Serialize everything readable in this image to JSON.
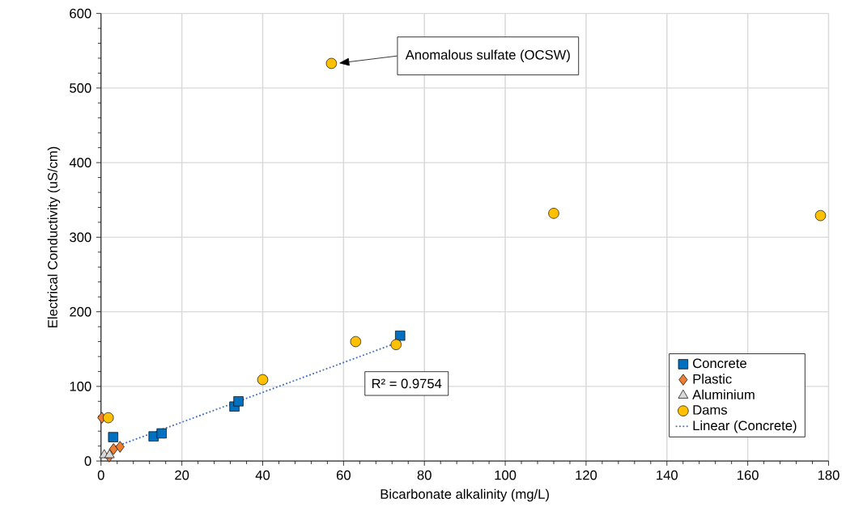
{
  "chart_data": {
    "type": "scatter",
    "xlabel": "Bicarbonate alkalinity (mg/L)",
    "ylabel": "Electrical Conductivity (uS/cm)",
    "xlim": [
      0,
      180
    ],
    "ylim": [
      0,
      600
    ],
    "xticks": [
      0,
      20,
      40,
      60,
      80,
      100,
      120,
      140,
      160,
      180
    ],
    "yticks": [
      0,
      100,
      200,
      300,
      400,
      500,
      600
    ],
    "grid": true,
    "legend": "bottom right",
    "series": [
      {
        "name": "Concrete",
        "color": "#0070c0",
        "marker": "square",
        "x": [
          3,
          13,
          15,
          33,
          34,
          74
        ],
        "values": [
          32,
          33,
          37,
          73,
          80,
          168
        ]
      },
      {
        "name": "Plastic",
        "color": "#ed7d31",
        "marker": "diamond",
        "x": [
          0.2,
          2,
          3.1,
          4.7
        ],
        "values": [
          58,
          6,
          16,
          19
        ]
      },
      {
        "name": "Aluminium",
        "color": "#d9d9d9",
        "marker": "triangle",
        "x": [
          0.8,
          2.1
        ],
        "values": [
          8,
          8
        ]
      },
      {
        "name": "Dams",
        "color": "#ffc000",
        "marker": "circle",
        "x": [
          1.8,
          40,
          57,
          63,
          73,
          112,
          178
        ],
        "values": [
          58,
          109,
          533,
          160,
          156,
          332,
          329
        ]
      },
      {
        "name": "Linear (Concrete)",
        "type": "line",
        "color": "#4472c4",
        "line_style": "dotted",
        "marker": "none",
        "x": [
          3,
          74
        ],
        "values": [
          18,
          160
        ]
      }
    ],
    "annotations": [
      "Anomalous sulfate (OCSW)",
      "R² = 0.9754"
    ]
  }
}
